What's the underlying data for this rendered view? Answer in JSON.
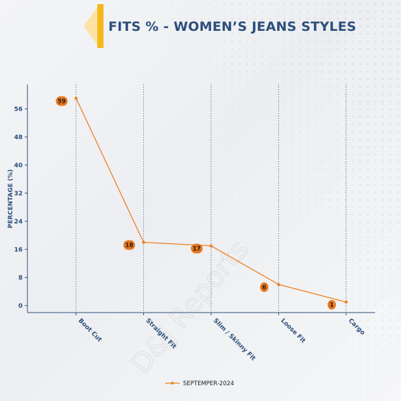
{
  "title": "FITS % - WOMEN’S JEANS STYLES",
  "watermark": "D&J Reports",
  "colors": {
    "line": "#f07f1e",
    "label_bg": "#e8761c",
    "axis": "#2d4f7c",
    "brand_yellow": "#f5b81c",
    "brand_tint": "#fde3a3"
  },
  "chart_data": {
    "type": "line",
    "categories": [
      "Boot Cut",
      "Straight Fit",
      "Slim / Skinny Fit",
      "Loose Fit",
      "Cargo"
    ],
    "series": [
      {
        "name": "SEPTEMPER-2024",
        "values": [
          59,
          18,
          17,
          6,
          1
        ]
      }
    ],
    "data_labels": [
      "59",
      "18",
      "17",
      "6",
      "1"
    ],
    "ylabel": "PERCENTAGE (%)",
    "xlabel": "",
    "ylim": [
      -2,
      63
    ],
    "yticks": [
      0,
      8,
      16,
      24,
      32,
      40,
      48,
      56
    ],
    "grid": "vertical dotted at categories",
    "legend": "bottom-center"
  }
}
